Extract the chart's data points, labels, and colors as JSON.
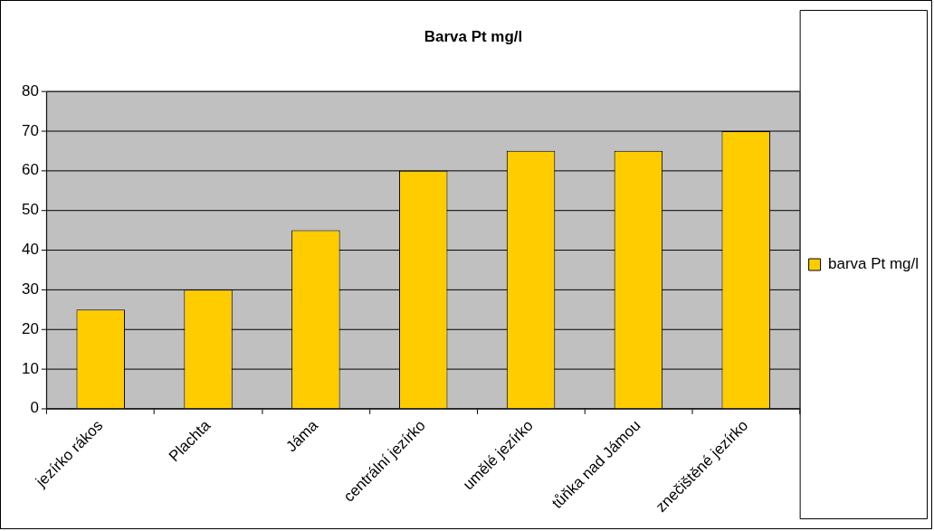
{
  "chart_data": {
    "type": "bar",
    "title": "Barva Pt mg/l",
    "categories": [
      "jezírko rákos",
      "Plachta",
      "Jáma",
      "centrální jezírko",
      "umělé jezírko",
      "tůňka nad Jámou",
      "znečištěné jezírko"
    ],
    "series": [
      {
        "name": "barva Pt mg/l",
        "color": "#ffcc00",
        "values": [
          25,
          30,
          45,
          60,
          65,
          65,
          70
        ]
      }
    ],
    "ylim": [
      0,
      80
    ],
    "yticks": [
      0,
      10,
      20,
      30,
      40,
      50,
      60,
      70,
      80
    ],
    "grid": "y",
    "legend": "right"
  }
}
